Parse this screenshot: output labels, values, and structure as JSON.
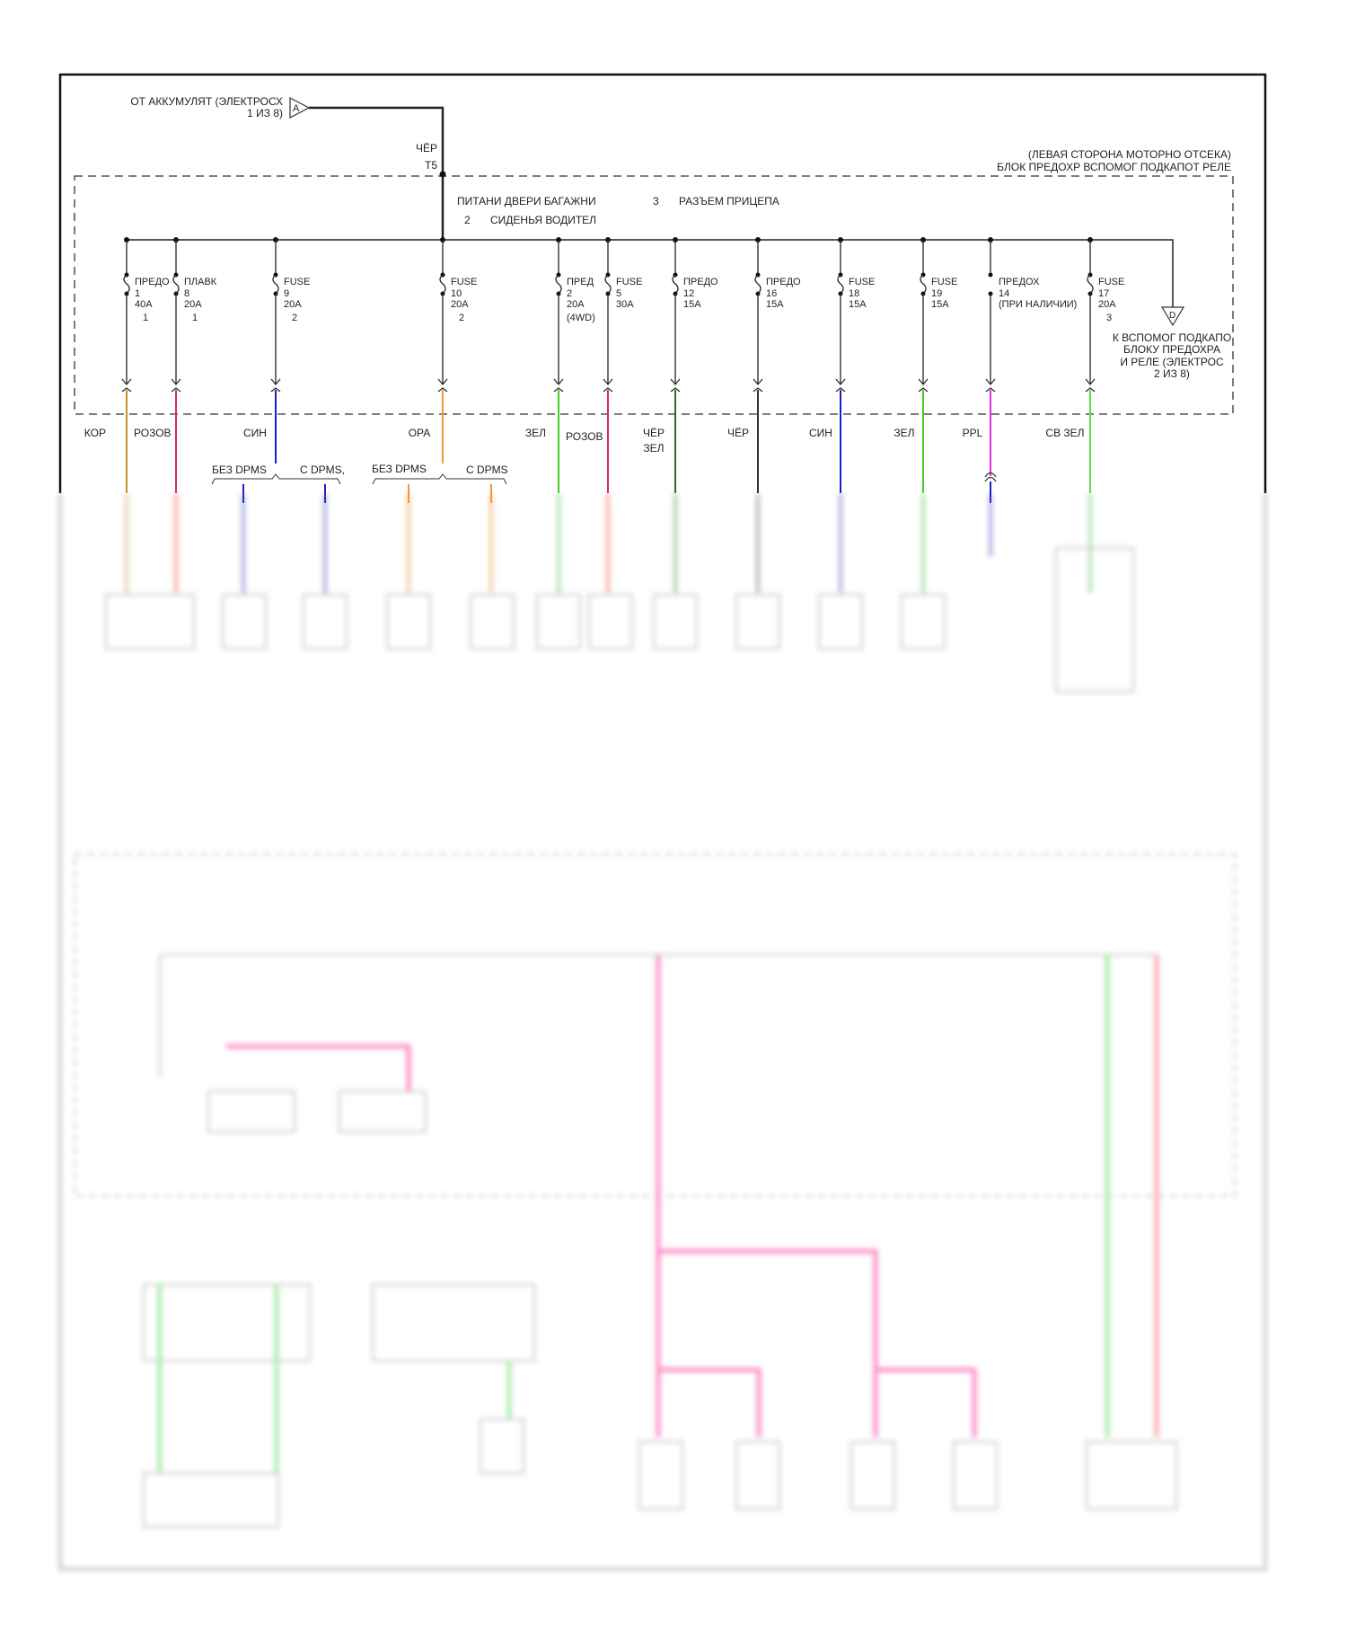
{
  "source": {
    "line1": "ОТ АККУМУЛЯТ (ЭЛЕКТРОСХ",
    "line2": "1 ИЗ 8)",
    "connector": "A",
    "wire_color": "ЧЁР",
    "terminal": "T5"
  },
  "block": {
    "line1": "(ЛЕВАЯ СТОРОНА МОТОРНО ОТСЕКА)",
    "line2": "БЛОК ПРЕДОХР ВСПОМОГ ПОДКАПОТ РЕЛЕ"
  },
  "legend": [
    {
      "num": "",
      "text": "ПИТАНИ ДВЕРИ БАГАЖНИ"
    },
    {
      "num": "2",
      "text": "СИДЕНЬЯ ВОДИТЕЛ"
    },
    {
      "num": "3",
      "text": "РАЗЪЕМ ПРИЦЕПА"
    }
  ],
  "fuses": [
    {
      "lines": [
        "ПРЕДО",
        "1",
        "40A",
        "1"
      ],
      "wire": "КОР",
      "color": "#c8922a"
    },
    {
      "lines": [
        "ПЛАВК",
        "8",
        "20A",
        "1"
      ],
      "wire": "РОЗОВ",
      "color": "#d42a6a"
    },
    {
      "lines": [
        "FUSE",
        "9",
        "20A",
        "2"
      ],
      "wire": "СИН",
      "color": "#1c1cc8"
    },
    {
      "lines": [
        "FUSE",
        "10",
        "20A",
        "2"
      ],
      "wire": "ОРА",
      "color": "#f09a28"
    },
    {
      "lines": [
        "ПРЕД",
        "2",
        "20A",
        "(4WD)"
      ],
      "wire": "ЗЕЛ",
      "color": "#44cc22"
    },
    {
      "lines": [
        "FUSE",
        "5",
        "30A",
        ""
      ],
      "wire": "РОЗОВ",
      "color": "#d42a6a"
    },
    {
      "lines": [
        "ПРЕДО",
        "12",
        "15A",
        ""
      ],
      "wire": "ЧЁР ЗЕЛ",
      "color": "#2e6b2e"
    },
    {
      "lines": [
        "ПРЕДО",
        "16",
        "15A",
        ""
      ],
      "wire": "ЧЁР",
      "color": "#333333"
    },
    {
      "lines": [
        "FUSE",
        "18",
        "15A",
        ""
      ],
      "wire": "СИН",
      "color": "#1c1cc8"
    },
    {
      "lines": [
        "FUSE",
        "19",
        "15A",
        ""
      ],
      "wire": "ЗЕЛ",
      "color": "#44cc22"
    },
    {
      "lines": [
        "ПРЕДОХ",
        "14",
        "(ПРИ НАЛИЧИИ)",
        ""
      ],
      "wire": "PPL",
      "color": "#dd33dd"
    },
    {
      "lines": [
        "FUSE",
        "17",
        "20A",
        "3"
      ],
      "wire": "СВ ЗЕЛ",
      "color": "#55dd44"
    }
  ],
  "output": {
    "connector": "D",
    "lines": [
      "К ВСПОМОГ ПОДКАПО",
      "БЛОКУ ПРЕДОХРА",
      "И РЕЛЕ (ЭЛЕКТРОС",
      "2 ИЗ 8)"
    ]
  },
  "dpms": {
    "without": "БЕЗ DPMS",
    "with_a": "С DPMS,",
    "with_b": "С DPMS"
  }
}
